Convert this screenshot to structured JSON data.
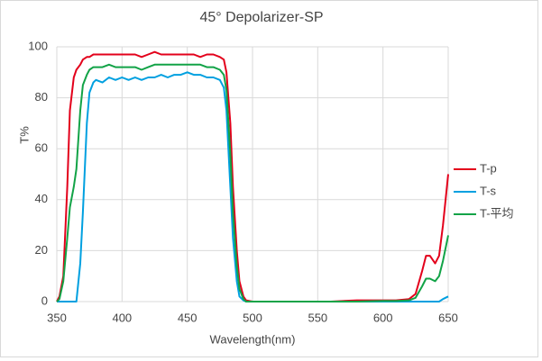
{
  "chart_data": {
    "type": "line",
    "title": "45° Depolarizer-SP",
    "xlabel": "Wavelength(nm)",
    "ylabel": "T%",
    "x": [
      350,
      352,
      355,
      358,
      360,
      363,
      365,
      368,
      370,
      373,
      375,
      378,
      380,
      385,
      390,
      395,
      400,
      405,
      410,
      415,
      420,
      425,
      430,
      435,
      440,
      445,
      450,
      455,
      460,
      465,
      470,
      475,
      478,
      480,
      483,
      485,
      488,
      490,
      493,
      495,
      500,
      520,
      540,
      560,
      580,
      600,
      610,
      620,
      625,
      630,
      633,
      636,
      640,
      643,
      646,
      650
    ],
    "series": [
      {
        "name": "T-p",
        "color": "#e3001b",
        "values": [
          0,
          2,
          10,
          45,
          75,
          88,
          91,
          93,
          95,
          96,
          96,
          97,
          97,
          97,
          97,
          97,
          97,
          97,
          97,
          96,
          97,
          98,
          97,
          97,
          97,
          97,
          97,
          97,
          96,
          97,
          97,
          96,
          95,
          90,
          70,
          45,
          20,
          8,
          2,
          0.5,
          0,
          0,
          0,
          0,
          0.5,
          0.5,
          0.5,
          1,
          3,
          12,
          18,
          18,
          15,
          18,
          30,
          50
        ]
      },
      {
        "name": "T-s",
        "color": "#00a0e0",
        "values": [
          0,
          0,
          0,
          0,
          0,
          0,
          0,
          15,
          35,
          70,
          82,
          86,
          87,
          86,
          88,
          87,
          88,
          87,
          88,
          87,
          88,
          88,
          89,
          88,
          89,
          89,
          90,
          89,
          89,
          88,
          88,
          87,
          84,
          75,
          45,
          25,
          8,
          2,
          0.5,
          0,
          0,
          0,
          0,
          0,
          0,
          0,
          0,
          0,
          0,
          0,
          0,
          0,
          0,
          0,
          1,
          2
        ]
      },
      {
        "name": "T-平均",
        "color": "#12a347",
        "values": [
          0,
          1,
          8,
          25,
          37,
          45,
          52,
          75,
          85,
          89,
          91,
          92,
          92,
          92,
          93,
          92,
          92,
          92,
          92,
          91,
          92,
          93,
          93,
          93,
          93,
          93,
          93,
          93,
          93,
          92,
          92,
          91,
          89,
          83,
          58,
          35,
          14,
          5,
          1,
          0,
          0,
          0,
          0,
          0,
          0,
          0.3,
          0.3,
          0.5,
          1.5,
          6,
          9,
          9,
          8,
          10,
          16,
          26
        ]
      }
    ],
    "xlim": [
      350,
      650
    ],
    "xticks": [
      350,
      400,
      450,
      500,
      550,
      600,
      650
    ],
    "ylim": [
      0,
      100
    ],
    "yticks": [
      0,
      20,
      40,
      60,
      80,
      100
    ],
    "grid": true,
    "legend": "right"
  }
}
